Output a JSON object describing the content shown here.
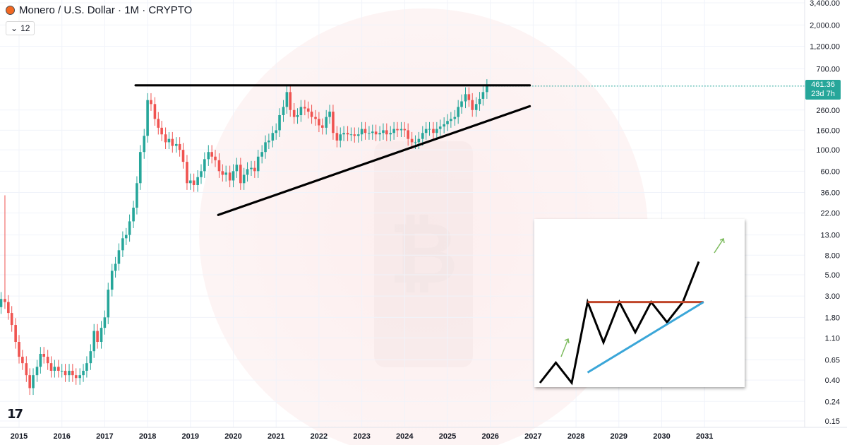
{
  "header": {
    "title": "Monero / U.S. Dollar · 1M · CRYPTO",
    "indicator_count": "12"
  },
  "price_label": {
    "price": "461.36",
    "countdown": "23d 7h"
  },
  "colors": {
    "up": "#26a69a",
    "down": "#ef5350",
    "trendline": "#000000",
    "inset_resistance": "#c0462a",
    "inset_support": "#3aa6d8",
    "inset_arrow": "#7dbb5e"
  },
  "chart_data": [
    {
      "type": "candlestick",
      "scale": "log",
      "x_ticks": [
        "2015",
        "2016",
        "2017",
        "2018",
        "2019",
        "2020",
        "2021",
        "2022",
        "2023",
        "2024",
        "2025",
        "2026",
        "2027",
        "2028",
        "2029",
        "2030",
        "2031"
      ],
      "y_ticks": [
        "3,400.00",
        "2,000.00",
        "1,200.00",
        "700.00",
        "461.36",
        "260.00",
        "160.00",
        "100.00",
        "60.00",
        "36.00",
        "22.00",
        "13.00",
        "8.00",
        "5.00",
        "3.00",
        "1.80",
        "1.10",
        "0.65",
        "0.40",
        "0.24",
        "0.15"
      ],
      "ylim": [
        0.15,
        3400
      ],
      "xlim": [
        2014.0,
        2031.0
      ],
      "series": [
        {
          "closes": [
            [
              2014.33,
              2.5
            ],
            [
              2014.42,
              2.4
            ],
            [
              2014.5,
              2.3
            ],
            [
              2014.58,
              2.8
            ],
            [
              2014.67,
              2.6
            ],
            [
              2014.75,
              2.0
            ],
            [
              2014.83,
              1.5
            ],
            [
              2014.92,
              1.0
            ],
            [
              2015.0,
              0.7
            ],
            [
              2015.08,
              0.6
            ],
            [
              2015.17,
              0.45
            ],
            [
              2015.25,
              0.33
            ],
            [
              2015.33,
              0.45
            ],
            [
              2015.42,
              0.55
            ],
            [
              2015.5,
              0.75
            ],
            [
              2015.58,
              0.7
            ],
            [
              2015.67,
              0.6
            ],
            [
              2015.75,
              0.5
            ],
            [
              2015.83,
              0.55
            ],
            [
              2015.92,
              0.5
            ],
            [
              2016.0,
              0.5
            ],
            [
              2016.08,
              0.45
            ],
            [
              2016.17,
              0.5
            ],
            [
              2016.25,
              0.45
            ],
            [
              2016.33,
              0.42
            ],
            [
              2016.42,
              0.45
            ],
            [
              2016.5,
              0.5
            ],
            [
              2016.58,
              0.6
            ],
            [
              2016.67,
              0.8
            ],
            [
              2016.75,
              1.3
            ],
            [
              2016.83,
              1.0
            ],
            [
              2016.92,
              1.4
            ],
            [
              2017.0,
              1.8
            ],
            [
              2017.08,
              3.5
            ],
            [
              2017.17,
              5.5
            ],
            [
              2017.25,
              6.5
            ],
            [
              2017.33,
              9
            ],
            [
              2017.42,
              12
            ],
            [
              2017.5,
              13
            ],
            [
              2017.58,
              18
            ],
            [
              2017.67,
              25
            ],
            [
              2017.75,
              45
            ],
            [
              2017.83,
              95
            ],
            [
              2017.92,
              140
            ],
            [
              2018.0,
              330
            ],
            [
              2018.08,
              300
            ],
            [
              2018.17,
              210
            ],
            [
              2018.25,
              170
            ],
            [
              2018.33,
              145
            ],
            [
              2018.42,
              120
            ],
            [
              2018.5,
              130
            ],
            [
              2018.58,
              110
            ],
            [
              2018.67,
              115
            ],
            [
              2018.75,
              100
            ],
            [
              2018.83,
              75
            ],
            [
              2018.92,
              45
            ],
            [
              2019.0,
              48
            ],
            [
              2019.08,
              43
            ],
            [
              2019.17,
              52
            ],
            [
              2019.25,
              60
            ],
            [
              2019.33,
              80
            ],
            [
              2019.42,
              95
            ],
            [
              2019.5,
              85
            ],
            [
              2019.58,
              78
            ],
            [
              2019.67,
              60
            ],
            [
              2019.75,
              55
            ],
            [
              2019.83,
              58
            ],
            [
              2019.92,
              48
            ],
            [
              2020.0,
              60
            ],
            [
              2020.08,
              70
            ],
            [
              2020.17,
              45
            ],
            [
              2020.25,
              55
            ],
            [
              2020.33,
              63
            ],
            [
              2020.42,
              65
            ],
            [
              2020.5,
              60
            ],
            [
              2020.58,
              85
            ],
            [
              2020.67,
              95
            ],
            [
              2020.75,
              120
            ],
            [
              2020.83,
              125
            ],
            [
              2020.92,
              150
            ],
            [
              2021.0,
              160
            ],
            [
              2021.08,
              230
            ],
            [
              2021.17,
              280
            ],
            [
              2021.25,
              400
            ],
            [
              2021.33,
              260
            ],
            [
              2021.42,
              220
            ],
            [
              2021.5,
              230
            ],
            [
              2021.58,
              280
            ],
            [
              2021.67,
              270
            ],
            [
              2021.75,
              250
            ],
            [
              2021.83,
              220
            ],
            [
              2021.92,
              210
            ],
            [
              2022.0,
              180
            ],
            [
              2022.08,
              170
            ],
            [
              2022.17,
              220
            ],
            [
              2022.25,
              250
            ],
            [
              2022.33,
              150
            ],
            [
              2022.42,
              125
            ],
            [
              2022.5,
              145
            ],
            [
              2022.58,
              150
            ],
            [
              2022.67,
              145
            ],
            [
              2022.75,
              145
            ],
            [
              2022.83,
              140
            ],
            [
              2022.92,
              145
            ],
            [
              2023.0,
              165
            ],
            [
              2023.08,
              150
            ],
            [
              2023.17,
              150
            ],
            [
              2023.25,
              155
            ],
            [
              2023.33,
              145
            ],
            [
              2023.42,
              150
            ],
            [
              2023.5,
              160
            ],
            [
              2023.58,
              145
            ],
            [
              2023.67,
              150
            ],
            [
              2023.75,
              165
            ],
            [
              2023.83,
              160
            ],
            [
              2023.92,
              165
            ],
            [
              2024.0,
              160
            ],
            [
              2024.08,
              130
            ],
            [
              2024.17,
              120
            ],
            [
              2024.25,
              120
            ],
            [
              2024.33,
              130
            ],
            [
              2024.42,
              150
            ],
            [
              2024.5,
              165
            ],
            [
              2024.58,
              165
            ],
            [
              2024.67,
              150
            ],
            [
              2024.75,
              165
            ],
            [
              2024.83,
              175
            ],
            [
              2024.92,
              185
            ],
            [
              2025.0,
              200
            ],
            [
              2025.08,
              210
            ],
            [
              2025.17,
              220
            ],
            [
              2025.25,
              280
            ],
            [
              2025.33,
              320
            ],
            [
              2025.42,
              380
            ],
            [
              2025.5,
              330
            ],
            [
              2025.58,
              260
            ],
            [
              2025.67,
              300
            ],
            [
              2025.75,
              340
            ],
            [
              2025.83,
              400
            ],
            [
              2025.92,
              461.36
            ]
          ]
        }
      ],
      "annotations": [
        {
          "kind": "line",
          "from": [
            2017.72,
            470
          ],
          "to": [
            2026.92,
            470
          ]
        },
        {
          "kind": "line",
          "from": [
            2019.65,
            21
          ],
          "to": [
            2026.92,
            285
          ]
        }
      ]
    },
    {
      "type": "line",
      "x": [
        0,
        1,
        2,
        3,
        4,
        5,
        6,
        7,
        8,
        9,
        10
      ],
      "series": [
        {
          "values": [
            0,
            2,
            0,
            8,
            4,
            8,
            5,
            8,
            6,
            8,
            12
          ]
        }
      ],
      "annotations": [
        {
          "kind": "resistance",
          "from": [
            3,
            8
          ],
          "to": [
            10.3,
            8
          ]
        },
        {
          "kind": "support",
          "from": [
            3,
            2
          ],
          "to": [
            10.3,
            8
          ]
        }
      ]
    }
  ]
}
